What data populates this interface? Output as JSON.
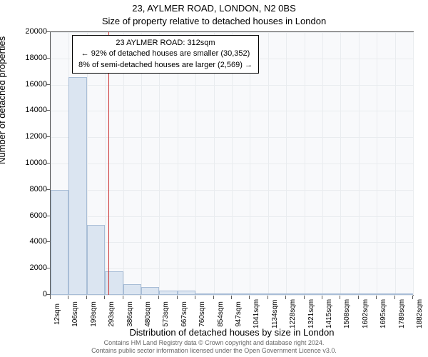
{
  "address": "23, AYLMER ROAD, LONDON, N2 0BS",
  "subtitle": "Size of property relative to detached houses in London",
  "yaxis_label": "Number of detached properties",
  "xaxis_label": "Distribution of detached houses by size in London",
  "footer_line1": "Contains HM Land Registry data © Crown copyright and database right 2024.",
  "footer_line2": "Contains public sector information licensed under the Open Government Licence v3.0.",
  "annotation": {
    "line1": "23 AYLMER ROAD: 312sqm",
    "line2": "← 92% of detached houses are smaller (30,352)",
    "line3": "8% of semi-detached houses are larger (2,569) →"
  },
  "chart": {
    "type": "histogram",
    "plot_bg": "#f8f9fb",
    "bar_fill": "#dbe5f1",
    "bar_stroke": "#a8bdd6",
    "grid_color": "#e9ecef",
    "axis_color": "#5a5a5a",
    "marker_color": "#cc3333",
    "ylim": [
      0,
      20000
    ],
    "ytick_step": 2000,
    "xtick_labels": [
      "12sqm",
      "106sqm",
      "199sqm",
      "293sqm",
      "386sqm",
      "480sqm",
      "573sqm",
      "667sqm",
      "760sqm",
      "854sqm",
      "947sqm",
      "1041sqm",
      "1134sqm",
      "1228sqm",
      "1321sqm",
      "1415sqm",
      "1508sqm",
      "1602sqm",
      "1695sqm",
      "1789sqm",
      "1882sqm"
    ],
    "marker_value": 312,
    "bars": [
      8000,
      16600,
      5300,
      1800,
      800,
      600,
      300,
      300,
      100,
      100,
      100,
      60,
      60,
      60,
      60,
      50,
      50,
      50,
      40,
      40
    ],
    "title_fontsize": 13,
    "axis_label_fontsize": 13,
    "tick_fontsize": 11
  }
}
